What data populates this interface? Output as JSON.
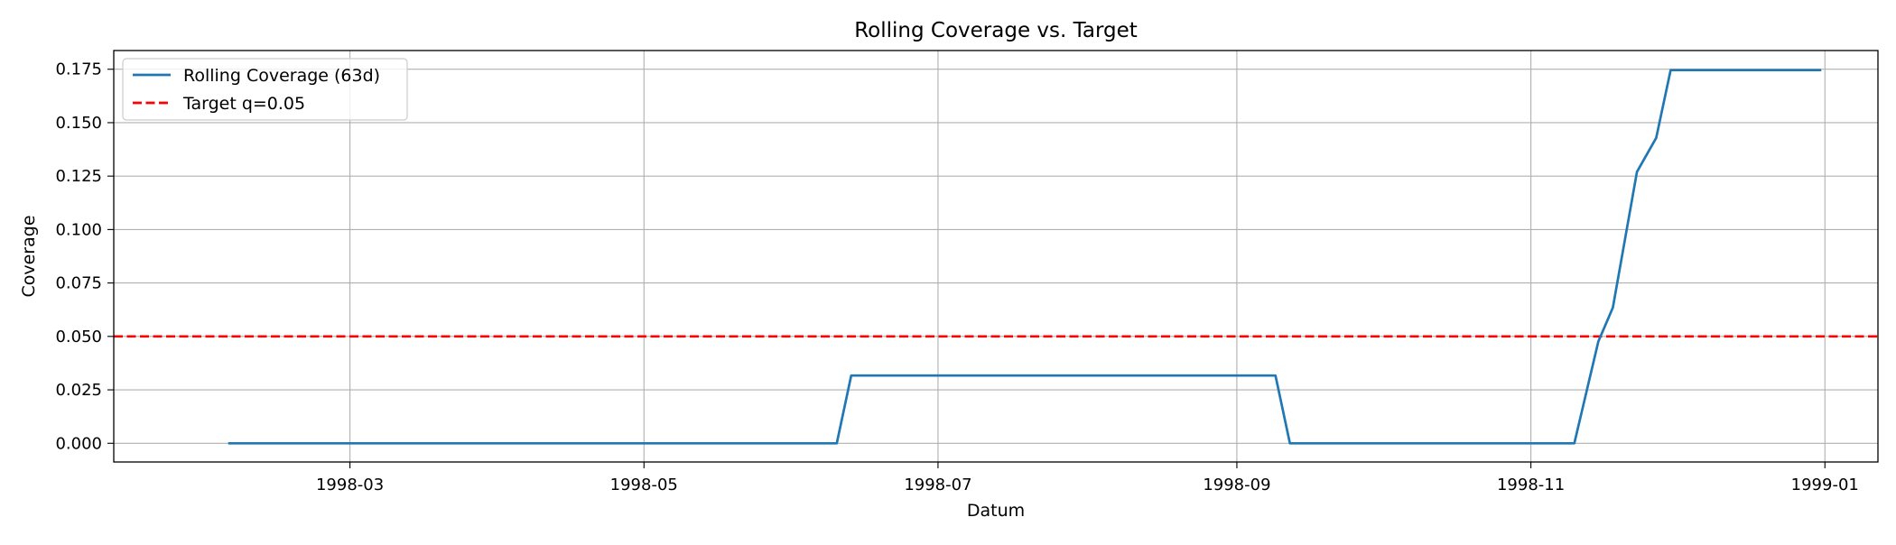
{
  "chart_data": {
    "type": "line",
    "title": "Rolling Coverage vs. Target",
    "xlabel": "Datum",
    "ylabel": "Coverage",
    "xlim": [
      "1998-01-11",
      "1999-01-12"
    ],
    "ylim": [
      -0.00875,
      0.18375
    ],
    "x_ticks": [
      "1998-03",
      "1998-05",
      "1998-07",
      "1998-09",
      "1998-11",
      "1999-01"
    ],
    "x_tick_dates": [
      "1998-03-01",
      "1998-05-01",
      "1998-07-01",
      "1998-09-01",
      "1998-11-01",
      "1999-01-01"
    ],
    "y_ticks": [
      "0.000",
      "0.025",
      "0.050",
      "0.075",
      "0.100",
      "0.125",
      "0.150",
      "0.175"
    ],
    "y_tick_values": [
      0,
      0.025,
      0.05,
      0.075,
      0.1,
      0.125,
      0.15,
      0.175
    ],
    "grid": true,
    "legend_position": "top-left",
    "series": [
      {
        "name": "Rolling Coverage (63d)",
        "style": "solid",
        "color": "#1f77b4",
        "points": [
          {
            "x": "1998-02-04",
            "y": 0
          },
          {
            "x": "1998-06-10",
            "y": 0
          },
          {
            "x": "1998-06-13",
            "y": 0.0317
          },
          {
            "x": "1998-09-09",
            "y": 0.0317
          },
          {
            "x": "1998-09-12",
            "y": 0
          },
          {
            "x": "1998-11-10",
            "y": 0
          },
          {
            "x": "1998-11-15",
            "y": 0.0476
          },
          {
            "x": "1998-11-18",
            "y": 0.0635
          },
          {
            "x": "1998-11-23",
            "y": 0.127
          },
          {
            "x": "1998-11-27",
            "y": 0.1429
          },
          {
            "x": "1998-11-30",
            "y": 0.1746
          },
          {
            "x": "1998-12-31",
            "y": 0.1746
          }
        ]
      },
      {
        "name": "Target q=0.05",
        "style": "dashed",
        "color": "#ff0000",
        "y": 0.05
      }
    ]
  }
}
